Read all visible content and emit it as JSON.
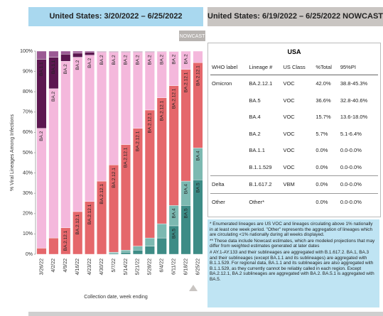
{
  "chart_data": {
    "type": "stacked_bar",
    "title": "United States: 3/20/2022 – 6/25/2022",
    "x_label": "Collection date, week ending",
    "y_label": "% Viral Lineages Among Infections",
    "annotation": "NOWCAST",
    "categories": [
      "3/26/22",
      "4/2/22",
      "4/9/22",
      "4/16/22",
      "4/23/22",
      "4/30/22",
      "5/7/22",
      "5/14/22",
      "5/21/22",
      "5/28/22",
      "6/4/22",
      "6/11/22",
      "6/18/22",
      "6/25/22"
    ],
    "series": [
      {
        "name": "BA.5",
        "color": "#3d8c86",
        "values": [
          0,
          0,
          0,
          0,
          0,
          0,
          0.5,
          1,
          2,
          4,
          8,
          14,
          24,
          36.6
        ]
      },
      {
        "name": "BA.4",
        "color": "#7cb9b1",
        "values": [
          0,
          0,
          0,
          0,
          0,
          0,
          0.5,
          1,
          2,
          4,
          7,
          10,
          12,
          15.7
        ]
      },
      {
        "name": "BA.2.12.1",
        "color": "#e5676b",
        "values": [
          3,
          8,
          13,
          21,
          26,
          36,
          43,
          52,
          58,
          63,
          62,
          59,
          55,
          42.0
        ]
      },
      {
        "name": "BA.2",
        "color": "#f4b8dc",
        "values": [
          59,
          73.5,
          82,
          76,
          72,
          63.5,
          55.5,
          45.5,
          37.5,
          28.5,
          22.7,
          16.8,
          8.9,
          5.7
        ]
      },
      {
        "name": "BA.1.1",
        "color": "#5c1750",
        "values": [
          34,
          15.5,
          3.5,
          2,
          1.5,
          0.3,
          0.3,
          0.3,
          0.3,
          0.3,
          0.2,
          0.1,
          0.1,
          0
        ]
      },
      {
        "color": "#9b5a94",
        "values": [
          4,
          3,
          1.5,
          1,
          0.5,
          0.2,
          0.2,
          0.2,
          0.2,
          0.2,
          0.1,
          0.1,
          0,
          0
        ]
      }
    ],
    "ylim": [
      0,
      100
    ],
    "yticks": [
      {
        "value": 0,
        "label": "0%"
      },
      {
        "value": 10,
        "label": "10%"
      },
      {
        "value": 20,
        "label": "20%"
      },
      {
        "value": 30,
        "label": "30%"
      },
      {
        "value": 40,
        "label": "40%"
      },
      {
        "value": 50,
        "label": "50%"
      },
      {
        "value": 60,
        "label": "60%"
      },
      {
        "value": 70,
        "label": "70%"
      },
      {
        "value": 80,
        "label": "80%"
      },
      {
        "value": 90,
        "label": "90%"
      },
      {
        "value": 100,
        "label": "100%"
      }
    ],
    "grid": false
  },
  "table": {
    "title": "United States: 6/19/2022 – 6/25/2022 NOWCAST",
    "region": "USA",
    "columns": [
      "WHO label",
      "Lineage #",
      "US Class",
      "%Total",
      "95%PI"
    ],
    "rows": [
      [
        "Omicron",
        "BA.2.12.1",
        "VOC",
        "42.0%",
        "38.8-45.3%"
      ],
      [
        null,
        "BA.5",
        "VOC",
        "36.6%",
        "32.8-40.6%"
      ],
      [
        null,
        "BA.4",
        "VOC",
        "15.7%",
        "13.6-18.0%"
      ],
      [
        null,
        "BA.2",
        "VOC",
        "5.7%",
        "5.1-6.4%"
      ],
      [
        null,
        "BA.1.1",
        "VOC",
        "0.0%",
        "0.0-0.0%"
      ],
      [
        null,
        "B.1.1.529",
        "VOC",
        "0.0%",
        "0.0-0.0%"
      ],
      [
        "Delta",
        "B.1.617.2",
        "VBM",
        "0.0%",
        "0.0-0.0%"
      ],
      [
        "Other",
        "Other*",
        null,
        "0.0%",
        "0.0-0.0%"
      ]
    ],
    "footnotes": [
      "*    Enumerated lineages are US VOC and lineages circulating above 1% nationally in at least one week period. \"Other\" represents the aggregation of lineages which are circulating <1% nationally during all weeks displayed.",
      "**   These data include Nowcast estimates, which are modeled projections that may differ from weighted estimates generated at later dates",
      "#    AY.1-AY.133 and their sublineages are aggregated with B.1.617.2. BA.1, BA.3 and their sublineages (except BA.1.1 and its sublineages) are aggregated with B.1.1.529. For regional data, BA.1.1 and its sublineages are also aggregated with B.1.1.529, as they currently cannot be reliably called in each region. Except BA.2.12.1, BA.2 sublineages are aggregated with BA.2. BA.5.1 is aggregated with BA.5."
    ]
  }
}
